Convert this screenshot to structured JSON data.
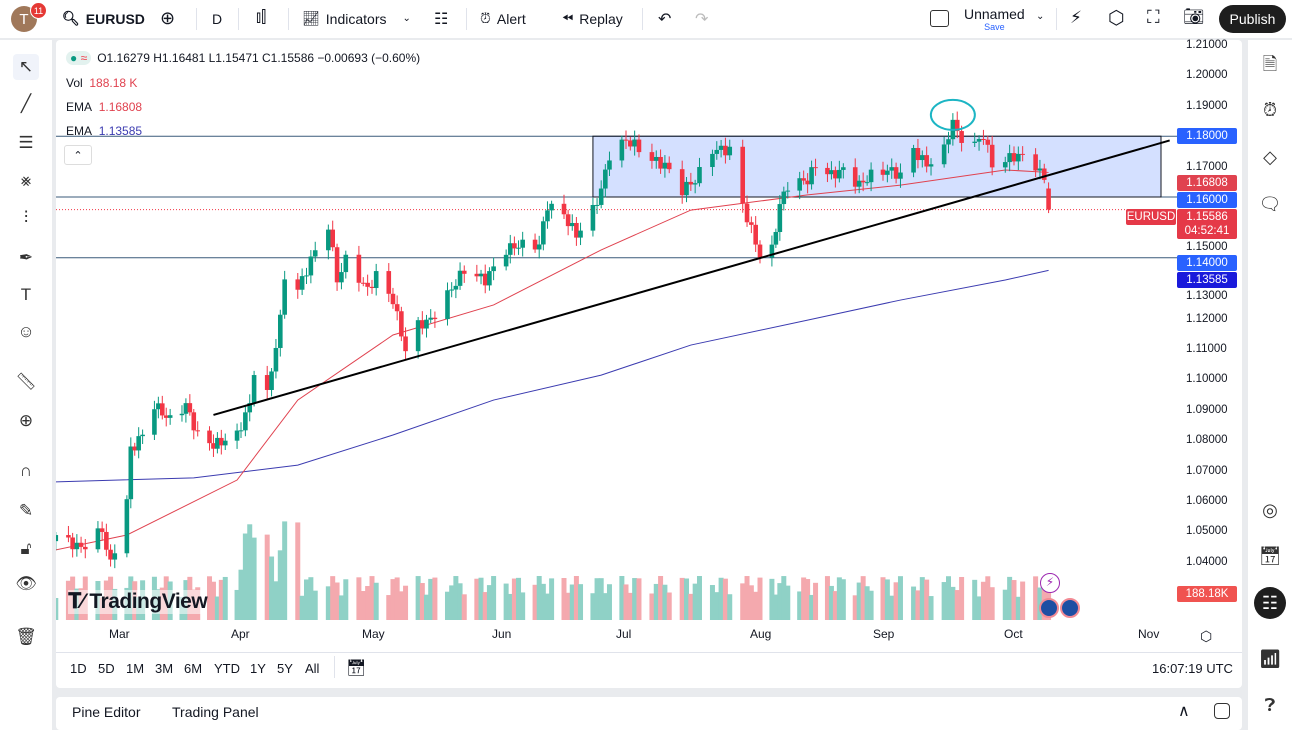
{
  "header": {
    "avatar_letter": "T",
    "notifications": "11",
    "symbol": "EURUSD",
    "interval": "D",
    "indicators": "Indicators",
    "alert": "Alert",
    "replay": "Replay",
    "layout_name": "Unnamed",
    "save": "Save",
    "publish": "Publish"
  },
  "legend": {
    "ohlc": "O1.16279 H1.16481 L1.15471 C1.15586 −0.00693 (−0.60%)",
    "vol_label": "Vol",
    "vol_value": "188.18 K",
    "ema1_label": "EMA",
    "ema1_value": "1.16808",
    "ema2_label": "EMA",
    "ema2_value": "1.13585"
  },
  "price_axis": {
    "ticks": [
      "1.21000",
      "1.20000",
      "1.19000",
      "1.17000",
      "1.15000",
      "1.13000",
      "1.12000",
      "1.11000",
      "1.10000",
      "1.09000",
      "1.08000",
      "1.07000",
      "1.06000",
      "1.05000",
      "1.04000"
    ],
    "labels": [
      {
        "text": "1.18000",
        "price": 1.18,
        "color": "#2962ff"
      },
      {
        "text": "1.16808",
        "price": 1.16808,
        "color": "#e0424f"
      },
      {
        "text": "1.16000",
        "price": 1.16,
        "color": "#2962ff"
      },
      {
        "text": "1.14000",
        "price": 1.14,
        "color": "#2962ff"
      },
      {
        "text": "1.13585",
        "price": 1.13585,
        "color": "#1a1adb"
      }
    ],
    "last": {
      "symbol": "EURUSD",
      "price": "1.15586",
      "countdown": "04:52:41",
      "color": "#e53948"
    },
    "volume_label": "188.18K"
  },
  "time_axis": {
    "months": [
      {
        "label": "Mar",
        "date": "2025-03-01"
      },
      {
        "label": "Apr",
        "date": "2025-04-01"
      },
      {
        "label": "May",
        "date": "2025-05-01"
      },
      {
        "label": "Jun",
        "date": "2025-06-01"
      },
      {
        "label": "Jul",
        "date": "2025-07-01"
      },
      {
        "label": "Aug",
        "date": "2025-08-01"
      },
      {
        "label": "Sep",
        "date": "2025-09-01"
      },
      {
        "label": "Oct",
        "date": "2025-10-01"
      },
      {
        "label": "Nov",
        "date": "2025-11-01"
      }
    ]
  },
  "ranges": [
    "1D",
    "5D",
    "1M",
    "3M",
    "6M",
    "YTD",
    "1Y",
    "5Y",
    "All"
  ],
  "clock": "16:07:19 UTC",
  "bottom_tabs": [
    "Pine Editor",
    "Trading Panel"
  ],
  "watermark": "TradingView",
  "colors": {
    "up": "#089981",
    "down": "#f23645",
    "ema_fast": "#e0424f",
    "ema_slow": "#3b3bb0",
    "rect": "#2962ff"
  },
  "chart_data": {
    "type": "candlestick",
    "symbol": "EURUSD",
    "interval": "D",
    "last_bar": {
      "date": "2025-10-09",
      "open": 1.16279,
      "high": 1.16481,
      "low": 1.15471,
      "close": 1.15586,
      "volume": "188.18K"
    },
    "close_path": [
      [
        "2025-02-14",
        1.0488
      ],
      [
        "2025-02-20",
        1.0445
      ],
      [
        "2025-02-25",
        1.0505
      ],
      [
        "2025-02-27",
        1.039
      ],
      [
        "2025-03-03",
        1.0603
      ],
      [
        "2025-03-04",
        1.0768
      ],
      [
        "2025-03-07",
        1.0817
      ],
      [
        "2025-03-10",
        1.0916
      ],
      [
        "2025-03-14",
        1.0866
      ],
      [
        "2025-03-18",
        1.0916
      ],
      [
        "2025-03-21",
        1.0817
      ],
      [
        "2025-03-25",
        1.0784
      ],
      [
        "2025-03-31",
        1.0817
      ],
      [
        "2025-04-03",
        1.0916
      ],
      [
        "2025-04-04",
        1.1031
      ],
      [
        "2025-04-07",
        1.0949
      ],
      [
        "2025-04-10",
        1.1195
      ],
      [
        "2025-04-11",
        1.1343
      ],
      [
        "2025-04-14",
        1.1294
      ],
      [
        "2025-04-17",
        1.1393
      ],
      [
        "2025-04-21",
        1.1508
      ],
      [
        "2025-04-23",
        1.1327
      ],
      [
        "2025-04-25",
        1.1393
      ],
      [
        "2025-04-30",
        1.1294
      ],
      [
        "2025-05-02",
        1.1343
      ],
      [
        "2025-05-06",
        1.1261
      ],
      [
        "2025-05-09",
        1.1097
      ],
      [
        "2025-05-12",
        1.1179
      ],
      [
        "2025-05-15",
        1.1195
      ],
      [
        "2025-05-19",
        1.1278
      ],
      [
        "2025-05-23",
        1.136
      ],
      [
        "2025-05-28",
        1.1327
      ],
      [
        "2025-06-02",
        1.1426
      ],
      [
        "2025-06-05",
        1.1442
      ],
      [
        "2025-06-10",
        1.1442
      ],
      [
        "2025-06-12",
        1.1574
      ],
      [
        "2025-06-16",
        1.1541
      ],
      [
        "2025-06-19",
        1.1475
      ],
      [
        "2025-06-23",
        1.1557
      ],
      [
        "2025-06-25",
        1.1623
      ],
      [
        "2025-06-27",
        1.1738
      ],
      [
        "2025-07-01",
        1.1787
      ],
      [
        "2025-07-03",
        1.1771
      ],
      [
        "2025-07-07",
        1.1722
      ],
      [
        "2025-07-10",
        1.1705
      ],
      [
        "2025-07-14",
        1.1623
      ],
      [
        "2025-07-17",
        1.1656
      ],
      [
        "2025-07-21",
        1.1755
      ],
      [
        "2025-07-25",
        1.1755
      ],
      [
        "2025-07-28",
        1.1574
      ],
      [
        "2025-08-01",
        1.1409
      ],
      [
        "2025-08-04",
        1.1426
      ],
      [
        "2025-08-06",
        1.1574
      ],
      [
        "2025-08-08",
        1.1639
      ],
      [
        "2025-08-13",
        1.1656
      ],
      [
        "2025-08-15",
        1.1705
      ],
      [
        "2025-08-19",
        1.1672
      ],
      [
        "2025-08-22",
        1.1689
      ],
      [
        "2025-08-26",
        1.1639
      ],
      [
        "2025-08-29",
        1.1672
      ],
      [
        "2025-09-02",
        1.1689
      ],
      [
        "2025-09-05",
        1.1672
      ],
      [
        "2025-09-08",
        1.1755
      ],
      [
        "2025-09-11",
        1.1705
      ],
      [
        "2025-09-15",
        1.1755
      ],
      [
        "2025-09-17",
        1.1853
      ],
      [
        "2025-09-18",
        1.1804
      ],
      [
        "2025-09-22",
        1.1771
      ],
      [
        "2025-09-24",
        1.1804
      ],
      [
        "2025-09-26",
        1.1705
      ],
      [
        "2025-09-29",
        1.1722
      ],
      [
        "2025-10-02",
        1.1738
      ],
      [
        "2025-10-06",
        1.1705
      ],
      [
        "2025-10-08",
        1.1656
      ],
      [
        "2025-10-09",
        1.15586
      ]
    ],
    "ema_fast": [
      [
        "2025-02-14",
        1.0439
      ],
      [
        "2025-03-03",
        1.0488
      ],
      [
        "2025-03-31",
        1.0669
      ],
      [
        "2025-04-14",
        1.0932
      ],
      [
        "2025-05-06",
        1.1146
      ],
      [
        "2025-05-30",
        1.1245
      ],
      [
        "2025-06-25",
        1.1426
      ],
      [
        "2025-07-16",
        1.1557
      ],
      [
        "2025-08-13",
        1.1607
      ],
      [
        "2025-09-05",
        1.1639
      ],
      [
        "2025-09-29",
        1.1689
      ],
      [
        "2025-10-09",
        1.16808
      ]
    ],
    "ema_slow": [
      [
        "2025-02-14",
        1.0663
      ],
      [
        "2025-03-20",
        1.0676
      ],
      [
        "2025-04-14",
        1.0718
      ],
      [
        "2025-05-06",
        1.0817
      ],
      [
        "2025-05-30",
        1.0932
      ],
      [
        "2025-06-25",
        1.1014
      ],
      [
        "2025-07-16",
        1.1113
      ],
      [
        "2025-08-13",
        1.1195
      ],
      [
        "2025-09-05",
        1.1261
      ],
      [
        "2025-09-29",
        1.1327
      ],
      [
        "2025-10-09",
        1.13585
      ]
    ],
    "drawings": {
      "rectangle": {
        "from": "2025-06-23",
        "to": "2025-11-04",
        "top": 1.18,
        "bottom": 1.16
      },
      "trendline": {
        "from": [
          "2025-03-25",
          1.0883
        ],
        "to": [
          "2025-11-06",
          1.1786
        ]
      },
      "horizontal_lines": [
        1.18,
        1.16,
        1.14
      ],
      "ellipse": {
        "date": "2025-09-17",
        "price": 1.187
      }
    },
    "ylim": [
      1.035,
      1.21
    ]
  }
}
